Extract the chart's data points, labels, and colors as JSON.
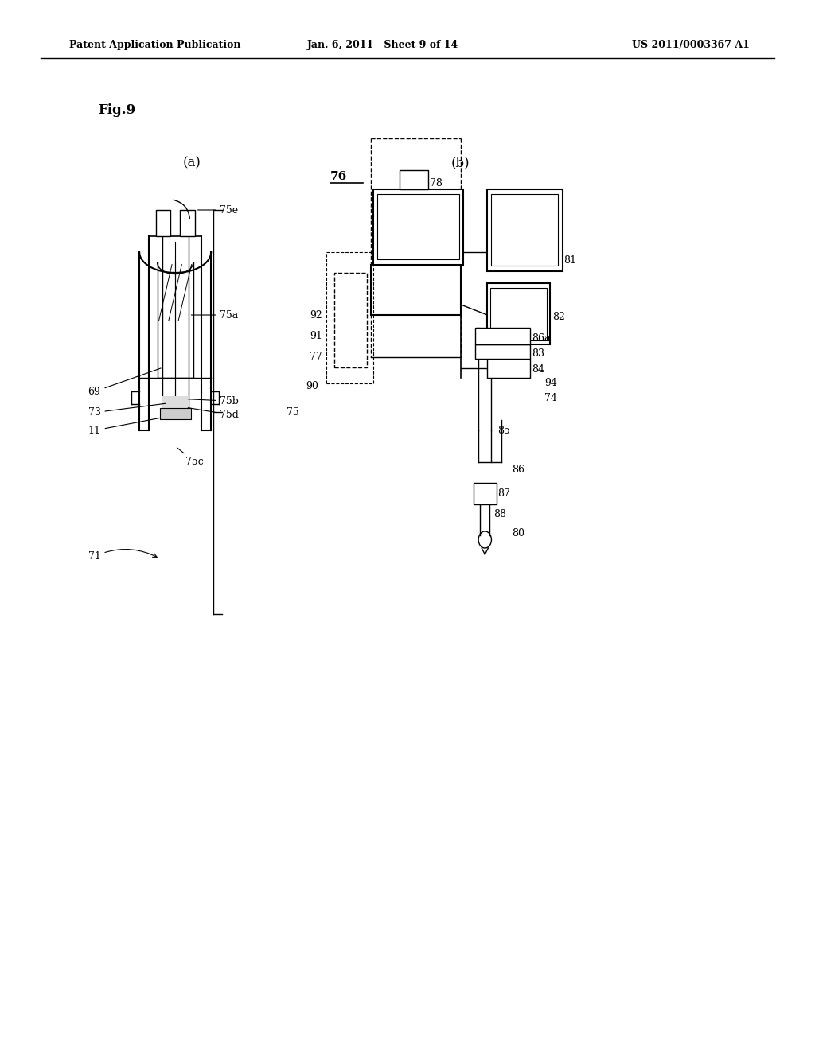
{
  "bg_color": "#ffffff",
  "header_left": "Patent Application Publication",
  "header_mid": "Jan. 6, 2011   Sheet 9 of 14",
  "header_right": "US 2011/0003367 A1",
  "fig_label": "Fig.9",
  "sub_a": "(a)",
  "sub_b": "(b)",
  "label_76": "76"
}
